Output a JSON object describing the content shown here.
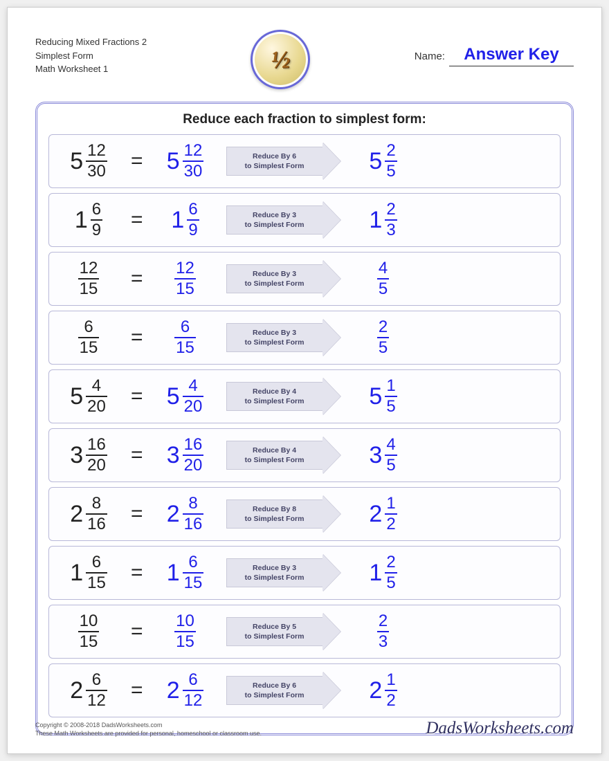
{
  "header": {
    "title_line1": "Reducing Mixed Fractions 2",
    "title_line2": "Simplest Form",
    "title_line3": "Math Worksheet 1",
    "logo_text": "½",
    "name_label": "Name:",
    "name_value": "Answer Key"
  },
  "panel": {
    "title": "Reduce each fraction to simplest form:",
    "arrow_line2": "to Simplest Form",
    "colors": {
      "problem_text": "#222222",
      "answer_text": "#2020e8",
      "arrow_fill": "#e4e4ee",
      "arrow_border": "#c8c8d8",
      "panel_border": "#8888d8",
      "row_border": "#b8b8d8"
    },
    "problems": [
      {
        "whole": "5",
        "num": "12",
        "den": "30",
        "reduce": "Reduce By 6",
        "r_whole": "5",
        "r_num": "2",
        "r_den": "5"
      },
      {
        "whole": "1",
        "num": "6",
        "den": "9",
        "reduce": "Reduce By 3",
        "r_whole": "1",
        "r_num": "2",
        "r_den": "3"
      },
      {
        "whole": "",
        "num": "12",
        "den": "15",
        "reduce": "Reduce By 3",
        "r_whole": "",
        "r_num": "4",
        "r_den": "5"
      },
      {
        "whole": "",
        "num": "6",
        "den": "15",
        "reduce": "Reduce By 3",
        "r_whole": "",
        "r_num": "2",
        "r_den": "5"
      },
      {
        "whole": "5",
        "num": "4",
        "den": "20",
        "reduce": "Reduce By 4",
        "r_whole": "5",
        "r_num": "1",
        "r_den": "5"
      },
      {
        "whole": "3",
        "num": "16",
        "den": "20",
        "reduce": "Reduce By 4",
        "r_whole": "3",
        "r_num": "4",
        "r_den": "5"
      },
      {
        "whole": "2",
        "num": "8",
        "den": "16",
        "reduce": "Reduce By 8",
        "r_whole": "2",
        "r_num": "1",
        "r_den": "2"
      },
      {
        "whole": "1",
        "num": "6",
        "den": "15",
        "reduce": "Reduce By 3",
        "r_whole": "1",
        "r_num": "2",
        "r_den": "5"
      },
      {
        "whole": "",
        "num": "10",
        "den": "15",
        "reduce": "Reduce By 5",
        "r_whole": "",
        "r_num": "2",
        "r_den": "3"
      },
      {
        "whole": "2",
        "num": "6",
        "den": "12",
        "reduce": "Reduce By 6",
        "r_whole": "2",
        "r_num": "1",
        "r_den": "2"
      }
    ]
  },
  "footer": {
    "copyright": "Copyright © 2008-2018 DadsWorksheets.com",
    "disclaimer": "These Math Worksheets are provided for personal, homeschool or classroom use.",
    "brand": "DadsWorksheets.com"
  }
}
